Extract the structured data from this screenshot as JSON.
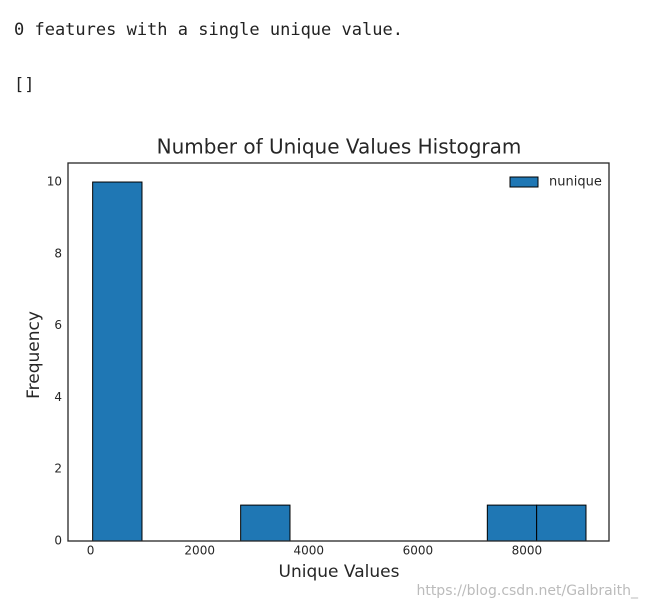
{
  "output_lines": [
    "0 features with a single unique value.",
    "[]"
  ],
  "chart_data": {
    "type": "histogram",
    "title": "Number of Unique Values Histogram",
    "xlabel": "Unique Values",
    "ylabel": "Frequency",
    "bins": [
      37,
      941.6,
      1846.2,
      2750.8,
      3655.4,
      4560,
      5464.6,
      6369.2,
      7273.8,
      8178.4,
      9083
    ],
    "series": [
      {
        "name": "nunique",
        "color": "#1f77b4",
        "edgecolor": "#000000",
        "values": [
          10,
          0,
          0,
          1,
          0,
          0,
          0,
          0,
          1,
          1
        ]
      }
    ],
    "xlim": [
      -415,
      9505
    ],
    "ylim": [
      0,
      10.53
    ],
    "xticks": [
      0,
      2000,
      4000,
      6000,
      8000
    ],
    "yticks": [
      0,
      2,
      4,
      6,
      8,
      10
    ],
    "grid": false,
    "legend": "upper right"
  },
  "watermark": "https://blog.csdn.net/Galbraith_"
}
